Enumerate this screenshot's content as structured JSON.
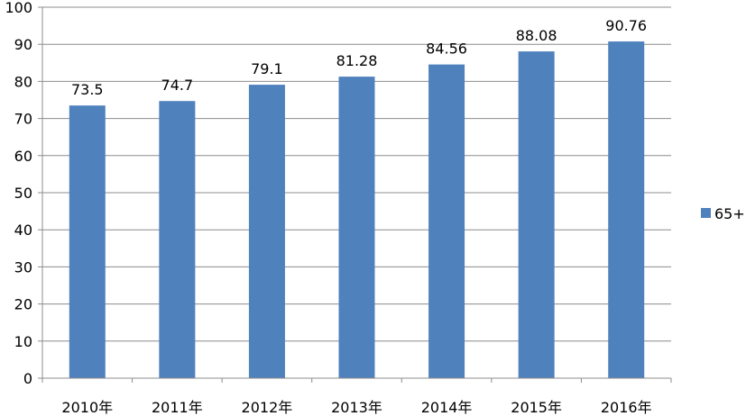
{
  "chart_data": {
    "type": "bar",
    "title": "",
    "xlabel": "",
    "ylabel": "",
    "categories": [
      "2010年",
      "2011年",
      "2012年",
      "2013年",
      "2014年",
      "2015年",
      "2016年"
    ],
    "series": [
      {
        "name": "65+",
        "values": [
          73.5,
          74.7,
          79.1,
          81.28,
          84.56,
          88.08,
          90.76
        ],
        "color": "#4F81BD"
      }
    ],
    "data_labels": [
      "73.5",
      "74.7",
      "79.1",
      "81.28",
      "84.56",
      "88.08",
      "90.76"
    ],
    "ylim": [
      0,
      100
    ],
    "yticks": [
      0,
      10,
      20,
      30,
      40,
      50,
      60,
      70,
      80,
      90,
      100
    ],
    "grid": true,
    "legend_position": "right"
  },
  "colors": {
    "bar": "#4F81BD",
    "grid": "#8C8C8C",
    "axis": "#8C8C8C"
  }
}
